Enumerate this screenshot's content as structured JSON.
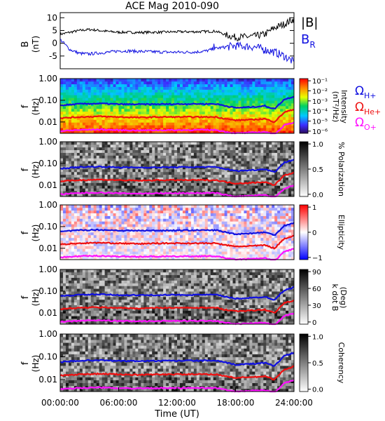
{
  "title": "ACE Mag 2010-090",
  "colors": {
    "black": "#000000",
    "blue": "#1010e0",
    "red": "#ee1010",
    "magenta": "#ff10ff"
  },
  "time_axis": {
    "label": "Time (UT)",
    "ticks": [
      "00:00:00",
      "06:00:00",
      "12:00:00",
      "18:00:00",
      "24:00:00"
    ],
    "range_hours": [
      0,
      24
    ]
  },
  "chart_data": [
    {
      "type": "line",
      "panel": "b-field",
      "ylabel": "B",
      "yunit": "(nT)",
      "ylim": [
        -10,
        12
      ],
      "yticks": [
        "-5",
        "0",
        "5",
        "10"
      ],
      "legend": [
        {
          "label": "|B|",
          "color": "#000000"
        },
        {
          "label": "B",
          "sub": "R",
          "color": "#1010e0"
        }
      ],
      "x_hours": [
        0,
        1,
        2,
        3,
        4,
        5,
        6,
        7,
        8,
        9,
        10,
        11,
        12,
        13,
        14,
        15,
        16,
        17,
        18,
        19,
        20,
        21,
        22,
        23,
        24
      ],
      "series": [
        {
          "name": "|B|",
          "color": "#000000",
          "values": [
            3.5,
            4.3,
            5.0,
            5.4,
            5.0,
            4.6,
            4.3,
            4.3,
            4.2,
            4.3,
            4.3,
            4.4,
            4.5,
            4.5,
            4.5,
            4.6,
            4.7,
            3.3,
            2.3,
            2.5,
            2.8,
            3.5,
            6.0,
            7.5,
            9.5
          ]
        },
        {
          "name": "B_R",
          "color": "#1010e0",
          "values": [
            1.5,
            -2.5,
            -4.0,
            -4.2,
            -3.8,
            -3.5,
            -3.0,
            -3.0,
            -3.2,
            -3.3,
            -3.4,
            -3.5,
            -3.5,
            -3.5,
            -3.4,
            -3.0,
            -2.0,
            -1.5,
            -1.0,
            -1.2,
            -1.5,
            -2.5,
            -3.5,
            -5.0,
            -7.5
          ]
        }
      ]
    },
    {
      "type": "heatmap",
      "panel": "power-spectrum",
      "ylabel": "f",
      "yunit": "(Hz)",
      "yscale": "log",
      "ylim": [
        0.003,
        1.0
      ],
      "yticks": [
        "0.01",
        "0.10",
        "1.00"
      ],
      "colorbar": {
        "label": "Intensity",
        "unit": "(nT²/Hz)",
        "ticks": [
          "10⁻⁶",
          "10⁻⁵",
          "10⁻⁴",
          "10⁻³",
          "10⁻²",
          "10⁻¹"
        ],
        "palette": "rainbow"
      }
    },
    {
      "type": "heatmap",
      "panel": "polarization",
      "ylabel": "f",
      "yunit": "(Hz)",
      "yscale": "log",
      "ylim": [
        0.003,
        1.0
      ],
      "yticks": [
        "0.01",
        "0.10",
        "1.00"
      ],
      "colorbar": {
        "label": "% Polarization",
        "unit": "",
        "ticks": [
          "0.0",
          "0.5",
          "1.0"
        ],
        "palette": "gray"
      }
    },
    {
      "type": "heatmap",
      "panel": "ellipticity",
      "ylabel": "f",
      "yunit": "(Hz)",
      "yscale": "log",
      "ylim": [
        0.003,
        1.0
      ],
      "yticks": [
        "0.01",
        "0.10",
        "1.00"
      ],
      "colorbar": {
        "label": "Ellipticity",
        "unit": "",
        "ticks": [
          "−1",
          "0",
          "1"
        ],
        "palette": "bluered"
      }
    },
    {
      "type": "heatmap",
      "panel": "k-dot-b",
      "ylabel": "f",
      "yunit": "(Hz)",
      "yscale": "log",
      "ylim": [
        0.003,
        1.0
      ],
      "yticks": [
        "0.01",
        "0.10",
        "1.00"
      ],
      "colorbar": {
        "label": "k dot B",
        "unit": "(Deg)",
        "ticks": [
          "0",
          "30",
          "60",
          "90"
        ],
        "palette": "gray"
      }
    },
    {
      "type": "heatmap",
      "panel": "coherency",
      "ylabel": "f",
      "yunit": "(Hz)",
      "yscale": "log",
      "ylim": [
        0.003,
        1.0
      ],
      "yticks": [
        "0.01",
        "0.10",
        "1.00"
      ],
      "colorbar": {
        "label": "Coherency",
        "unit": "",
        "ticks": [
          "0.0",
          "0.5",
          "1.0"
        ],
        "palette": "gray"
      }
    }
  ],
  "gyrofrequency_lines": {
    "x_hours": [
      0,
      2,
      4,
      6,
      8,
      10,
      12,
      14,
      16,
      17,
      18,
      20,
      21,
      22,
      23,
      24
    ],
    "series": [
      {
        "name": "Ω",
        "sub": "H+",
        "color": "#1010e0",
        "values": [
          0.058,
          0.068,
          0.071,
          0.066,
          0.065,
          0.066,
          0.067,
          0.068,
          0.068,
          0.055,
          0.045,
          0.05,
          0.055,
          0.04,
          0.11,
          0.15
        ]
      },
      {
        "name": "Ω",
        "sub": "He+",
        "color": "#ee1010",
        "values": [
          0.015,
          0.017,
          0.018,
          0.017,
          0.016,
          0.017,
          0.017,
          0.017,
          0.017,
          0.014,
          0.012,
          0.013,
          0.014,
          0.01,
          0.028,
          0.038
        ]
      },
      {
        "name": "Ω",
        "sub": "O+",
        "color": "#ff10ff",
        "values": [
          0.0038,
          0.0043,
          0.0045,
          0.0042,
          0.0041,
          0.0042,
          0.0042,
          0.0043,
          0.0043,
          0.0035,
          0.003,
          0.0033,
          0.0035,
          0.0026,
          0.007,
          0.0095
        ]
      }
    ]
  }
}
